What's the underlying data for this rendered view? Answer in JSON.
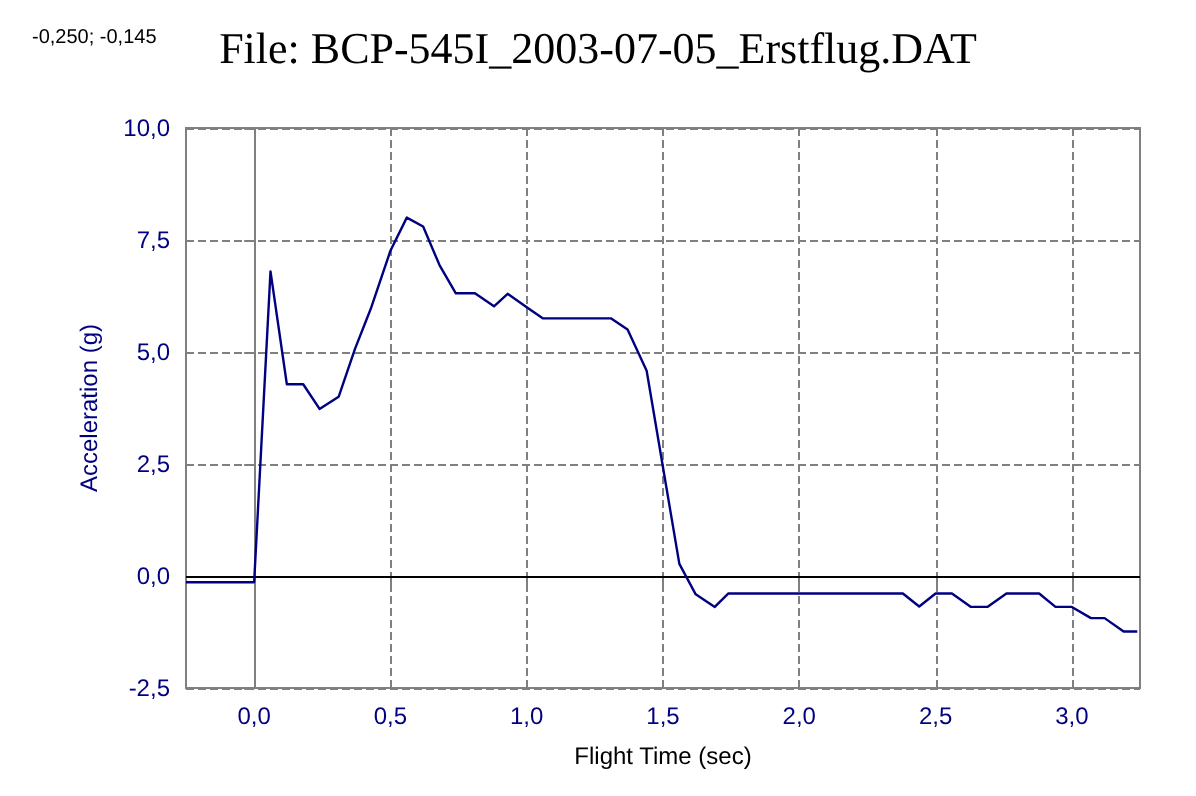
{
  "chart_data": {
    "type": "line",
    "title": "File: BCP-545I_2003-07-05_Erstflug.DAT",
    "xlabel": "Flight Time (sec)",
    "ylabel": "Acceleration (g)",
    "annotations": [
      "-0,250; -0,145"
    ],
    "x": [
      -0.25,
      0.0,
      0.06,
      0.12,
      0.18,
      0.24,
      0.31,
      0.37,
      0.43,
      0.5,
      0.56,
      0.62,
      0.68,
      0.74,
      0.81,
      0.88,
      0.93,
      1.0,
      1.06,
      1.31,
      1.37,
      1.44,
      1.56,
      1.62,
      1.69,
      1.74,
      2.38,
      2.44,
      2.5,
      2.56,
      2.63,
      2.69,
      2.76,
      2.88,
      2.94,
      3.0,
      3.07,
      3.12,
      3.19,
      3.24
    ],
    "series": [
      {
        "color": "#000080",
        "values": [
          -0.14,
          -0.14,
          6.8,
          4.28,
          4.28,
          3.73,
          4.0,
          5.07,
          6.0,
          7.26,
          8.0,
          7.8,
          6.94,
          6.31,
          6.31,
          6.02,
          6.3,
          6.0,
          5.75,
          5.75,
          5.5,
          4.58,
          0.27,
          -0.41,
          -0.69,
          -0.39,
          -0.39,
          -0.68,
          -0.39,
          -0.39,
          -0.69,
          -0.69,
          -0.39,
          -0.39,
          -0.69,
          -0.69,
          -0.94,
          -0.94,
          -1.24,
          -1.24
        ]
      }
    ],
    "xlim": [
      -0.25,
      3.25
    ],
    "xticks": [
      {
        "value": 0,
        "label": "0,0"
      },
      {
        "value": 0.5,
        "label": "0,5"
      },
      {
        "value": 1,
        "label": "1,0"
      },
      {
        "value": 1.5,
        "label": "1,5"
      },
      {
        "value": 2,
        "label": "2,0"
      },
      {
        "value": 2.5,
        "label": "2,5"
      },
      {
        "value": 3,
        "label": "3,0"
      }
    ],
    "ylim": [
      -2.5,
      10
    ],
    "yticks": [
      {
        "value": -2.5,
        "label": "-2,5"
      },
      {
        "value": 0,
        "label": "0,0"
      },
      {
        "value": 2.5,
        "label": "2,5"
      },
      {
        "value": 5,
        "label": "5,0"
      },
      {
        "value": 7.5,
        "label": "7,5"
      },
      {
        "value": 10,
        "label": "10,0"
      }
    ],
    "ref_lines": [
      {
        "axis": "y",
        "value": 0,
        "color": "#000000",
        "line_style": "solid"
      }
    ],
    "grid": true,
    "marker": "none",
    "line_style": "solid"
  }
}
